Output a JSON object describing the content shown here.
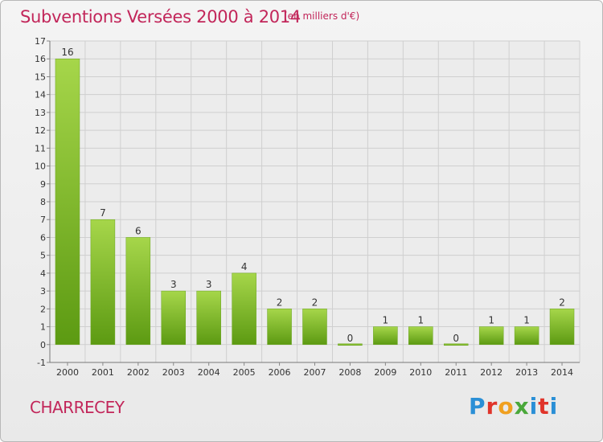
{
  "header": {
    "title": "Subventions Versées 2000 à 2014",
    "subtitle": "(en milliers d'€)"
  },
  "footer": {
    "commune": "CHARRECEY",
    "logo_letters": [
      "P",
      "r",
      "o",
      "x",
      "i",
      "t",
      "i"
    ],
    "logo_colors": [
      "#2a8fd6",
      "#e0342a",
      "#f0a020",
      "#4aa83a",
      "#2a8fd6",
      "#e0342a",
      "#2a8fd6"
    ]
  },
  "colors": {
    "bar_light": "#a6d64a",
    "bar_dark": "#5c9a12",
    "grid": "#cfcfcf",
    "title": "#c2265a"
  },
  "chart_data": {
    "type": "bar",
    "title": "Subventions Versées 2000 à 2014",
    "subtitle": "(en milliers d'€)",
    "categories": [
      "2000",
      "2001",
      "2002",
      "2003",
      "2004",
      "2005",
      "2006",
      "2007",
      "2008",
      "2009",
      "2010",
      "2011",
      "2012",
      "2013",
      "2014"
    ],
    "values": [
      16,
      7,
      6,
      3,
      3,
      4,
      2,
      2,
      0,
      1,
      1,
      0,
      1,
      1,
      2
    ],
    "data_labels": [
      "16",
      "7",
      "6",
      "3",
      "3",
      "4",
      "2",
      "2",
      "0",
      "1",
      "1",
      "0",
      "1",
      "1",
      "2"
    ],
    "ylim": [
      -1,
      17
    ],
    "yticks": [
      "-1",
      "0",
      "1",
      "2",
      "3",
      "4",
      "5",
      "6",
      "7",
      "8",
      "9",
      "10",
      "11",
      "12",
      "13",
      "14",
      "15",
      "16",
      "17"
    ],
    "ytick_values": [
      -1,
      0,
      1,
      2,
      3,
      4,
      5,
      6,
      7,
      8,
      9,
      10,
      11,
      12,
      13,
      14,
      15,
      16,
      17
    ],
    "grid": true,
    "xlabel": "",
    "ylabel": ""
  }
}
